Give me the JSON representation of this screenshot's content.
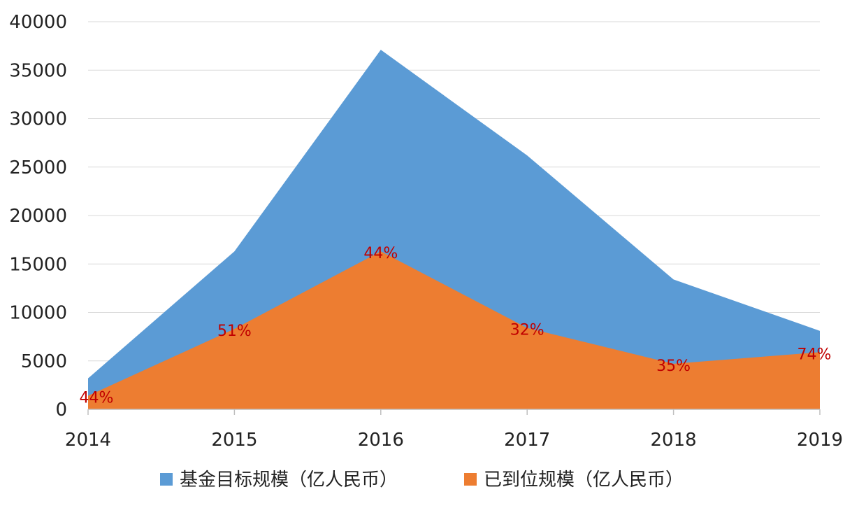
{
  "chart_data": {
    "type": "area",
    "categories": [
      "2014",
      "2015",
      "2016",
      "2017",
      "2018",
      "2019"
    ],
    "series": [
      {
        "name": "基金目标规模（亿人民币）",
        "values": [
          3200,
          16300,
          37100,
          26200,
          13400,
          8100
        ],
        "color": "#5b9bd5"
      },
      {
        "name": "已到位规模（亿人民币）",
        "values": [
          1400,
          8300,
          16300,
          8400,
          4700,
          5900
        ],
        "color": "#ed7d31"
      }
    ],
    "data_labels": [
      "44%",
      "51%",
      "44%",
      "32%",
      "35%",
      "74%"
    ],
    "data_label_color": "#c00000",
    "ylim": [
      0,
      40000
    ],
    "yticks": [
      "0",
      "5000",
      "10000",
      "15000",
      "20000",
      "25000",
      "30000",
      "35000",
      "40000"
    ],
    "grid": true,
    "legend_position": "bottom"
  }
}
